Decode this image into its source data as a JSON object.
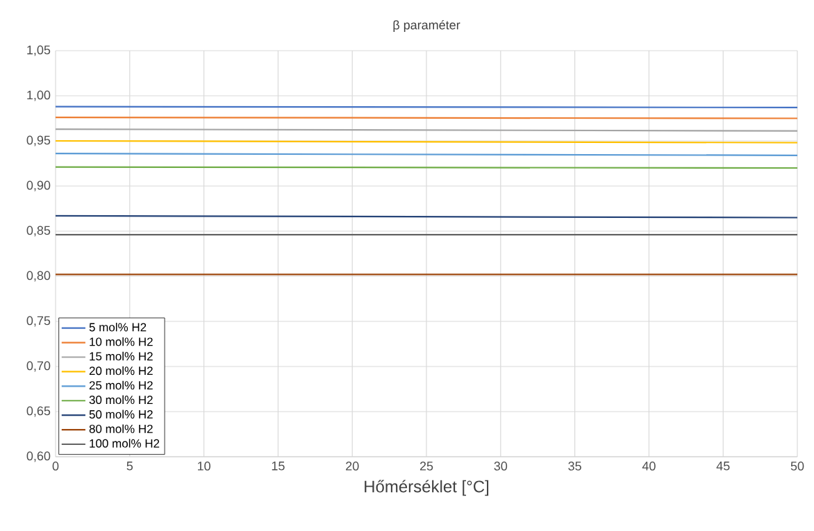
{
  "chart_data": {
    "type": "line",
    "title": "β paraméter",
    "xlabel": "Hőmérséklet [°C]",
    "x": [
      0,
      50
    ],
    "series": [
      {
        "name": "5 mol% H2",
        "color": "#4472c4",
        "values": [
          0.988,
          0.987
        ]
      },
      {
        "name": "10 mol% H2",
        "color": "#ed7d31",
        "values": [
          0.976,
          0.975
        ]
      },
      {
        "name": "15 mol% H2",
        "color": "#a5a5a5",
        "values": [
          0.963,
          0.961
        ]
      },
      {
        "name": "20 mol% H2",
        "color": "#ffc000",
        "values": [
          0.95,
          0.948
        ]
      },
      {
        "name": "25 mol% H2",
        "color": "#5b9bd5",
        "values": [
          0.936,
          0.934
        ]
      },
      {
        "name": "30 mol% H2",
        "color": "#70ad47",
        "values": [
          0.921,
          0.92
        ]
      },
      {
        "name": "50 mol% H2",
        "color": "#264478",
        "values": [
          0.867,
          0.865
        ]
      },
      {
        "name": "80 mol% H2",
        "color": "#9e480e",
        "values": [
          0.802,
          0.802
        ]
      },
      {
        "name": "100 mol% H2",
        "color": "#636363",
        "values": [
          0.846,
          0.846
        ]
      }
    ],
    "xlim": [
      0,
      50
    ],
    "ylim": [
      0.6,
      1.05
    ],
    "xticks": [
      0,
      5,
      10,
      15,
      20,
      25,
      30,
      35,
      40,
      45,
      50
    ],
    "yticks": [
      {
        "value": 0.6,
        "label": "0,60"
      },
      {
        "value": 0.65,
        "label": "0,65"
      },
      {
        "value": 0.7,
        "label": "0,70"
      },
      {
        "value": 0.75,
        "label": "0,75"
      },
      {
        "value": 0.8,
        "label": "0,80"
      },
      {
        "value": 0.85,
        "label": "0,85"
      },
      {
        "value": 0.9,
        "label": "0,90"
      },
      {
        "value": 0.95,
        "label": "0,95"
      },
      {
        "value": 1.0,
        "label": "1,00"
      },
      {
        "value": 1.05,
        "label": "1,05"
      }
    ],
    "grid": true,
    "legend": "bottom left",
    "marker": "none",
    "line_style": "solid"
  }
}
